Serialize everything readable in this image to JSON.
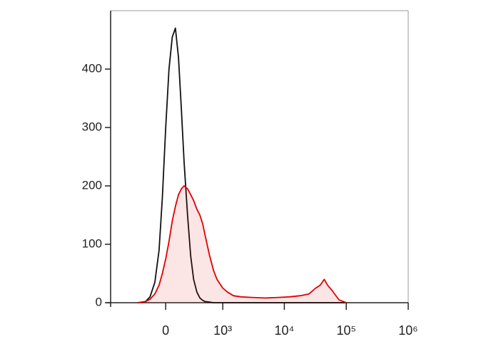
{
  "chart_data": {
    "type": "line",
    "x": [
      -300,
      -200,
      -150,
      -100,
      -60,
      -30,
      0,
      30,
      60,
      90,
      120,
      150,
      180,
      220,
      260,
      300,
      350,
      400,
      450,
      500,
      600,
      700,
      800,
      1000,
      1200,
      1500,
      2000,
      3000,
      5000,
      8000,
      12000,
      18000,
      25000,
      32000,
      38000,
      44000,
      50000,
      60000,
      76000,
      100000
    ],
    "series": [
      {
        "color": "#111111",
        "fill": false,
        "values": [
          0,
          2,
          10,
          35,
          90,
          180,
          300,
          400,
          455,
          470,
          420,
          330,
          240,
          150,
          80,
          40,
          18,
          8,
          4,
          2,
          1,
          0,
          0,
          0,
          0,
          0,
          0,
          0,
          0,
          0,
          0,
          0,
          0,
          0,
          0,
          0,
          0,
          0,
          0,
          0
        ]
      },
      {
        "color": "#e00000",
        "fill": true,
        "values": [
          0,
          2,
          6,
          15,
          30,
          50,
          75,
          105,
          140,
          165,
          185,
          195,
          200,
          195,
          185,
          175,
          160,
          150,
          135,
          115,
          80,
          55,
          40,
          25,
          18,
          12,
          10,
          9,
          8,
          9,
          10,
          12,
          15,
          25,
          30,
          40,
          30,
          20,
          5,
          0
        ]
      }
    ],
    "xscale": "asinh",
    "xlim": [
      -925,
      1000000
    ],
    "xticks": [
      0,
      {
        "value": 1000,
        "label": "10³"
      },
      {
        "value": 10000,
        "label": "10⁴"
      },
      {
        "value": 100000,
        "label": "10⁵"
      },
      {
        "value": 1000000,
        "label": "10⁶"
      }
    ],
    "ylim": [
      0,
      500
    ],
    "yticks": [
      0,
      100,
      200,
      300,
      400
    ]
  }
}
